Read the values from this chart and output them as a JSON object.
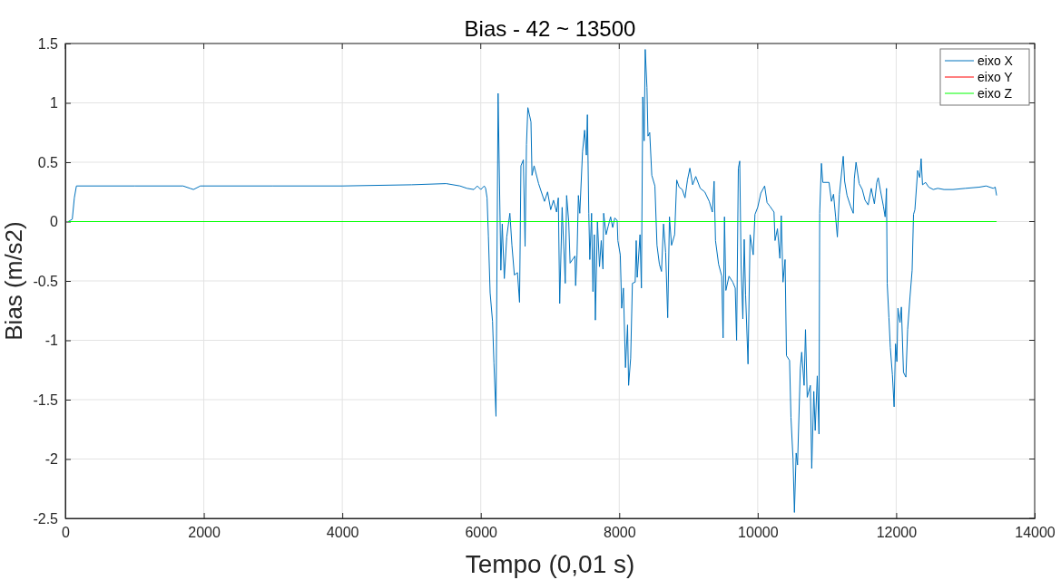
{
  "chart_data": {
    "type": "line",
    "title": "Bias - 42 ~ 13500",
    "xlabel": "Tempo (0,01 s)",
    "ylabel": "Bias (m/s2)",
    "xlim": [
      0,
      14000
    ],
    "xticks": [
      0,
      2000,
      4000,
      6000,
      8000,
      10000,
      12000,
      14000
    ],
    "ylim": [
      -2.5,
      1.5
    ],
    "yticks": [
      -2.5,
      -2,
      -1.5,
      -1,
      -0.5,
      0,
      0.5,
      1,
      1.5
    ],
    "grid": true,
    "legend": "top right",
    "series": [
      {
        "name": "eixo X",
        "color": "#0072bd",
        "x": [
          42,
          100,
          130,
          160,
          1000,
          1700,
          1800,
          1850,
          1950,
          3000,
          4000,
          5000,
          5500,
          5700,
          5800,
          5900,
          5950,
          6000,
          6050,
          6070,
          6091,
          6110,
          6135,
          6170,
          6190,
          6220,
          6250,
          6290,
          6310,
          6340,
          6375,
          6420,
          6450,
          6485,
          6530,
          6560,
          6580,
          6615,
          6640,
          6660,
          6680,
          6725,
          6740,
          6770,
          6835,
          6920,
          6965,
          7010,
          7050,
          7095,
          7120,
          7140,
          7175,
          7220,
          7240,
          7270,
          7290,
          7360,
          7370,
          7390,
          7410,
          7430,
          7470,
          7500,
          7525,
          7540,
          7560,
          7575,
          7600,
          7620,
          7640,
          7655,
          7685,
          7715,
          7740,
          7765,
          7775,
          7810,
          7840,
          7875,
          7905,
          7935,
          7970,
          7980,
          8015,
          8035,
          8060,
          8090,
          8120,
          8135,
          8165,
          8190,
          8230,
          8245,
          8260,
          8300,
          8320,
          8340,
          8360,
          8375,
          8400,
          8415,
          8440,
          8470,
          8515,
          8545,
          8580,
          8610,
          8640,
          8670,
          8700,
          8725,
          8755,
          8800,
          8830,
          8865,
          8910,
          8950,
          8985,
          9020,
          9060,
          9105,
          9170,
          9235,
          9300,
          9345,
          9370,
          9390,
          9435,
          9480,
          9500,
          9520,
          9540,
          9585,
          9640,
          9675,
          9695,
          9720,
          9740,
          9760,
          9785,
          9805,
          9825,
          9860,
          9890,
          9935,
          9960,
          10000,
          10045,
          10100,
          10135,
          10175,
          10235,
          10250,
          10285,
          10320,
          10340,
          10365,
          10395,
          10415,
          10460,
          10480,
          10510,
          10530,
          10555,
          10575,
          10615,
          10635,
          10670,
          10690,
          10715,
          10760,
          10780,
          10810,
          10830,
          10860,
          10885,
          10895,
          10920,
          10940,
          11030,
          11065,
          11095,
          11125,
          11150,
          11180,
          11235,
          11255,
          11290,
          11340,
          11380,
          11395,
          11420,
          11465,
          11510,
          11550,
          11595,
          11640,
          11685,
          11720,
          11740,
          11770,
          11815,
          11840,
          11860,
          11870,
          11895,
          11915,
          11945,
          11970,
          11990,
          12010,
          12025,
          12055,
          12075,
          12105,
          12140,
          12165,
          12200,
          12230,
          12250,
          12270,
          12310,
          12340,
          12360,
          12380,
          12425,
          12470,
          12535,
          12600,
          12690,
          12820,
          13000,
          13200,
          13300,
          13400,
          13430,
          13450
        ],
        "values": [
          0,
          0.02,
          0.2,
          0.3,
          0.3,
          0.3,
          0.28,
          0.27,
          0.3,
          0.3,
          0.3,
          0.31,
          0.32,
          0.3,
          0.28,
          0.27,
          0.3,
          0.27,
          0.3,
          0.28,
          0.2,
          -0.12,
          -0.6,
          -0.84,
          -1.19,
          -1.64,
          1.08,
          -0.41,
          -0.02,
          -0.48,
          -0.13,
          0.07,
          -0.2,
          -0.45,
          -0.43,
          -0.68,
          0.47,
          0.52,
          -0.21,
          0.65,
          0.96,
          0.84,
          0.39,
          0.47,
          0.32,
          0.17,
          0.25,
          0.1,
          0.18,
          0.08,
          0.2,
          -0.69,
          0.12,
          -0.52,
          0.22,
          0,
          -0.35,
          -0.29,
          -0.54,
          -0.28,
          0.22,
          0.07,
          0.59,
          0.77,
          0.56,
          0.9,
          0.07,
          -0.32,
          0.07,
          -0.59,
          -0.11,
          -0.83,
          0,
          -0.38,
          -0.16,
          -0.4,
          0.07,
          -0.11,
          -0.04,
          0.04,
          -0.05,
          0.03,
          0.01,
          -0.16,
          -0.28,
          -0.73,
          -0.56,
          -1.23,
          -0.87,
          -1.38,
          -1.15,
          -0.52,
          -0.51,
          -0.16,
          -0.47,
          -0.11,
          -0.56,
          1.05,
          0.68,
          1.45,
          1.13,
          0.72,
          0.75,
          0.39,
          0.3,
          -0.2,
          -0.36,
          -0.42,
          -0.02,
          -0.26,
          -0.81,
          0.04,
          -0.2,
          -0.11,
          0.35,
          0.29,
          0.27,
          0.2,
          0.35,
          0.45,
          0.31,
          0.38,
          0.28,
          0.25,
          0.17,
          0.08,
          0.34,
          -0.16,
          -0.36,
          -0.46,
          -0.98,
          0.04,
          -0.58,
          -0.46,
          -0.51,
          -0.56,
          -1,
          0.45,
          0.51,
          -0.37,
          -0.82,
          -0.15,
          -0.62,
          -1.2,
          -0.11,
          -0.28,
          0.06,
          0.12,
          0.24,
          0.3,
          0.16,
          0.13,
          0.08,
          -0.16,
          -0.06,
          -0.31,
          0.05,
          -0.51,
          -0.32,
          -1.13,
          -1.17,
          -1.65,
          -2,
          -2.45,
          -1.95,
          -2.05,
          -1.24,
          -1.1,
          -1.38,
          -0.91,
          -1.48,
          -1.38,
          -2.08,
          -1.43,
          -1.76,
          -1.3,
          -1.79,
          0.07,
          0.49,
          0.33,
          0.33,
          0.17,
          0.23,
          0.04,
          -0.13,
          0.23,
          0.55,
          0.34,
          0.22,
          0.13,
          0.07,
          0.36,
          0.5,
          0.32,
          0.27,
          0.18,
          0.14,
          0.28,
          0.15,
          0.33,
          0.37,
          0.27,
          0.13,
          0.04,
          0.28,
          -0.52,
          -0.81,
          -1.06,
          -1.29,
          -1.56,
          -1.03,
          -1.18,
          -0.73,
          -0.85,
          -0.72,
          -1.27,
          -1.31,
          -0.91,
          -0.63,
          -0.41,
          0.06,
          0.1,
          0.43,
          0.37,
          0.53,
          0.31,
          0.33,
          0.29,
          0.27,
          0.28,
          0.27,
          0.27,
          0.28,
          0.29,
          0.3,
          0.28,
          0.29,
          0.22
        ]
      },
      {
        "name": "eixo Y",
        "color": "#ff0000",
        "values": [
          null
        ]
      },
      {
        "name": "eixo Z",
        "color": "#00ff00",
        "x": [
          42,
          13450
        ],
        "values": [
          0,
          0
        ]
      }
    ]
  }
}
